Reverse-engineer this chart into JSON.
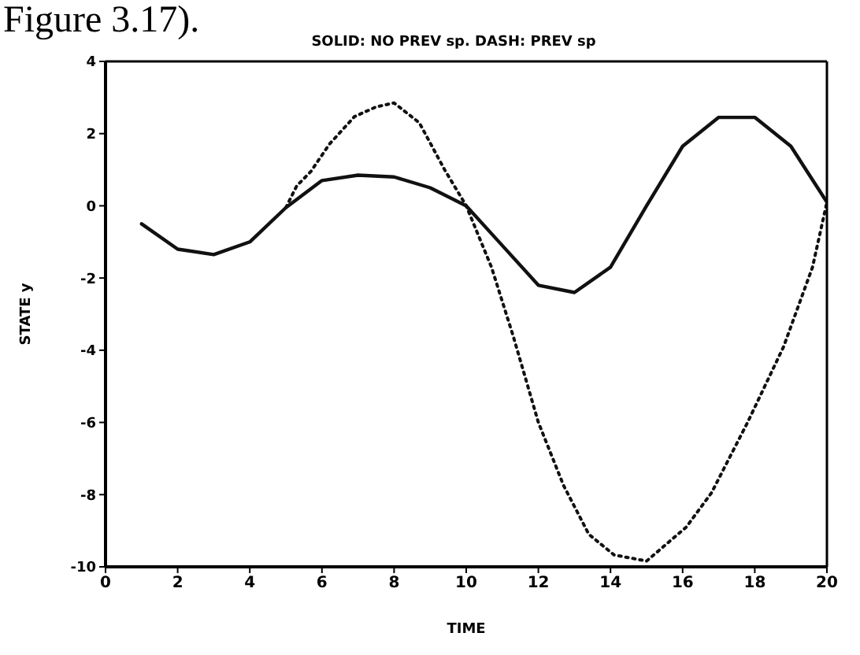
{
  "chart_data": {
    "type": "line",
    "title": "SOLID: NO PREV sp. DASH: PREV sp",
    "xlabel": "TIME",
    "ylabel": "STATE y",
    "annotations": [
      "Figure 3.17)."
    ],
    "xlim": [
      0,
      20
    ],
    "xticks": [
      0,
      2,
      4,
      6,
      8,
      10,
      12,
      14,
      16,
      18,
      20
    ],
    "ylim": [
      -10,
      4
    ],
    "yticks": [
      -10,
      -8,
      -6,
      -4,
      -2,
      0,
      2,
      4
    ],
    "series": [
      {
        "color": "#111111",
        "line_style": "solid",
        "x": [
          1,
          2,
          3,
          4,
          5,
          6,
          7,
          8,
          9,
          10,
          11,
          12,
          13,
          14,
          15,
          16,
          17,
          18,
          19,
          20
        ],
        "values": [
          -0.5,
          -1.2,
          -1.35,
          -1.0,
          -0.05,
          0.7,
          0.85,
          0.8,
          0.5,
          0.0,
          -1.1,
          -2.2,
          -2.4,
          -1.7,
          0.0,
          1.65,
          2.45,
          2.45,
          1.65,
          0.1
        ]
      },
      {
        "color": "#111111",
        "line_style": "dotted",
        "x": [
          5,
          5.3,
          5.7,
          6.2,
          6.9,
          7.5,
          8,
          8.7,
          9.4,
          10,
          10.7,
          11.3,
          12,
          12.7,
          13.4,
          14.1,
          15,
          16.1,
          16.8,
          17.8,
          18.8,
          19.6,
          20
        ],
        "values": [
          -0.05,
          0.55,
          0.96,
          1.7,
          2.47,
          2.74,
          2.85,
          2.3,
          1.0,
          0.0,
          -1.7,
          -3.6,
          -6.0,
          -7.75,
          -9.1,
          -9.67,
          -9.84,
          -8.9,
          -7.95,
          -6.0,
          -3.9,
          -1.7,
          0.1
        ]
      }
    ]
  }
}
